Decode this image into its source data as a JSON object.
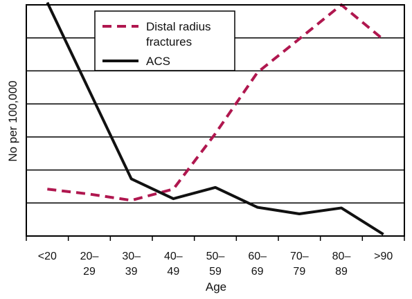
{
  "chart_data": {
    "type": "line",
    "title": "",
    "xlabel": "Age",
    "ylabel": "No per 100,000",
    "y_ticks_labeled": false,
    "ylim": [
      0,
      7
    ],
    "grid": "horizontal",
    "legend_position": "top-center",
    "categories": [
      {
        "line1": "<20",
        "line2": ""
      },
      {
        "line1": "20–",
        "line2": "29"
      },
      {
        "line1": "30–",
        "line2": "39"
      },
      {
        "line1": "40–",
        "line2": "49"
      },
      {
        "line1": "50–",
        "line2": "59"
      },
      {
        "line1": "60–",
        "line2": "69"
      },
      {
        "line1": "70–",
        "line2": "79"
      },
      {
        "line1": "80–",
        "line2": "89"
      },
      {
        "line1": ">90",
        "line2": ""
      }
    ],
    "series": [
      {
        "name_lines": [
          "Distal radius",
          "fractures"
        ],
        "style": "dashed",
        "color": "#b0174f",
        "values": [
          1.42,
          1.27,
          1.08,
          1.42,
          3.1,
          4.95,
          5.97,
          7.0,
          5.95
        ]
      },
      {
        "name_lines": [
          "ACS"
        ],
        "style": "solid",
        "color": "#111111",
        "values": [
          7.07,
          4.4,
          1.73,
          1.13,
          1.47,
          0.87,
          0.67,
          0.85,
          0.05
        ]
      }
    ]
  }
}
